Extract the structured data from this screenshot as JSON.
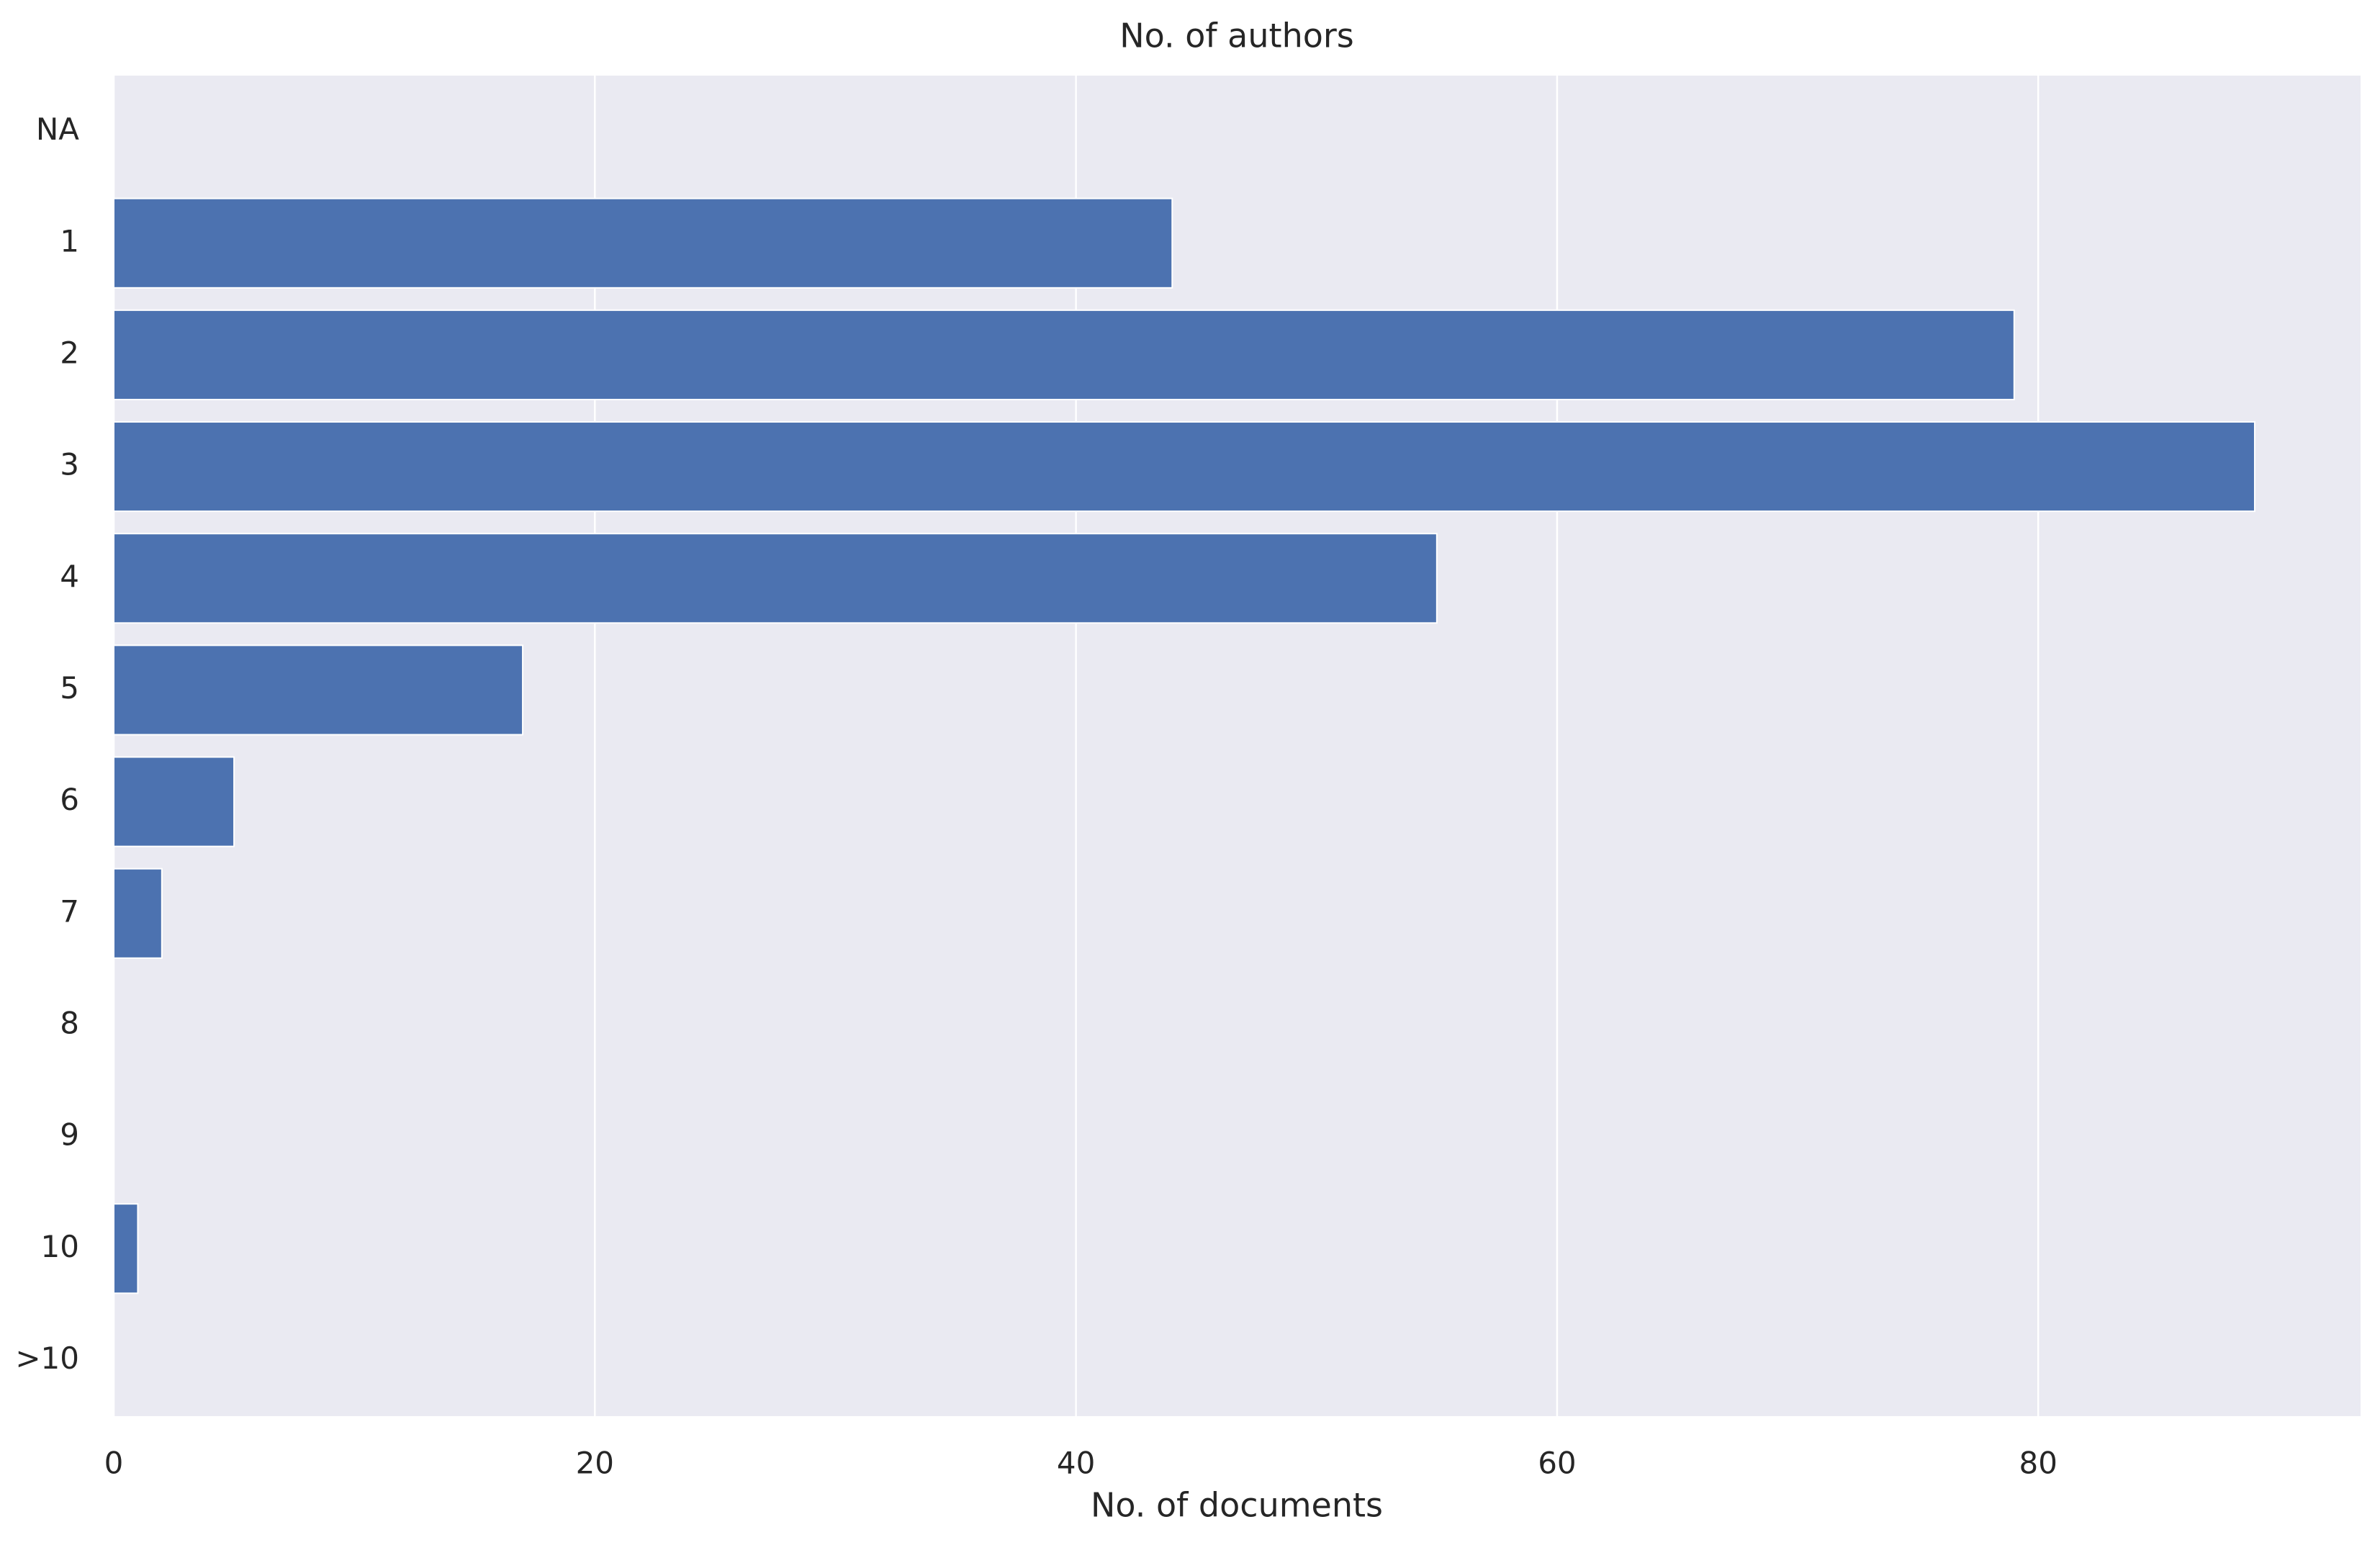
{
  "chart_data": {
    "type": "barh",
    "title": "No. of authors",
    "x_label": "No. of documents",
    "categories": [
      "NA",
      "1",
      "2",
      "3",
      "4",
      "5",
      "6",
      "7",
      "8",
      "9",
      "10",
      ">10"
    ],
    "values": [
      0,
      44,
      79,
      89,
      55,
      17,
      5,
      2,
      0,
      0,
      1,
      0
    ],
    "color": "#4c72b0",
    "xlim": [
      0,
      93.4
    ],
    "xticks": [
      0,
      20,
      40,
      60,
      80
    ],
    "grid": true
  }
}
